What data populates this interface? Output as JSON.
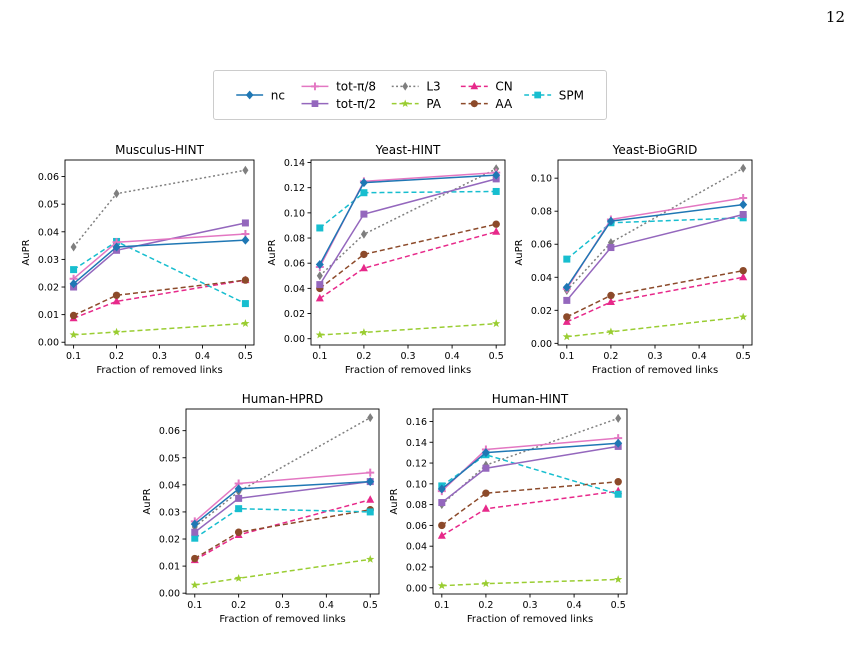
{
  "page": {
    "number": "12"
  },
  "legend": {
    "entries": [
      {
        "key": "nc",
        "label": "nc"
      },
      {
        "key": "tot8",
        "label": "tot-π/8"
      },
      {
        "key": "tot2",
        "label": "tot-π/2"
      },
      {
        "key": "L3",
        "label": "L3"
      },
      {
        "key": "PA",
        "label": "PA"
      },
      {
        "key": "CN",
        "label": "CN"
      },
      {
        "key": "AA",
        "label": "AA"
      },
      {
        "key": "SPM",
        "label": "SPM"
      }
    ]
  },
  "series_styles": {
    "nc": {
      "color": "#1f77b4",
      "dash": "solid",
      "marker": "diamond"
    },
    "tot8": {
      "color": "#e377c2",
      "dash": "solid",
      "marker": "plus"
    },
    "tot2": {
      "color": "#9467bd",
      "dash": "solid",
      "marker": "square"
    },
    "L3": {
      "color": "#7f7f7f",
      "dash": "dotted",
      "marker": "thin_diamond"
    },
    "PA": {
      "color": "#9acd32",
      "dash": "dashed",
      "marker": "star"
    },
    "CN": {
      "color": "#e7298a",
      "dash": "dashed",
      "marker": "triangle"
    },
    "AA": {
      "color": "#8c4a2a",
      "dash": "dashed",
      "marker": "circle"
    },
    "SPM": {
      "color": "#17becf",
      "dash": "dashed",
      "marker": "square"
    }
  },
  "chart_data": [
    {
      "type": "line",
      "title": "Musculus-HINT",
      "xlabel": "Fraction of removed links",
      "ylabel": "AuPR",
      "x": [
        0.1,
        0.2,
        0.5
      ],
      "xlim": [
        0.08,
        0.52
      ],
      "ylim": [
        -0.001,
        0.066
      ],
      "xticks": [
        "0.1",
        "0.2",
        "0.3",
        "0.4",
        "0.5"
      ],
      "yticks": [
        "0.00",
        "0.01",
        "0.02",
        "0.03",
        "0.04",
        "0.05",
        "0.06"
      ],
      "series": [
        {
          "key": "L3",
          "values": [
            0.0345,
            0.0538,
            0.0623
          ]
        },
        {
          "key": "PA",
          "values": [
            0.0027,
            0.0037,
            0.0068
          ]
        },
        {
          "key": "CN",
          "values": [
            0.0087,
            0.0148,
            0.0225
          ]
        },
        {
          "key": "AA",
          "values": [
            0.0097,
            0.017,
            0.0225
          ]
        },
        {
          "key": "SPM",
          "values": [
            0.0263,
            0.0365,
            0.014
          ]
        },
        {
          "key": "tot2",
          "values": [
            0.02,
            0.0333,
            0.0432
          ]
        },
        {
          "key": "tot8",
          "values": [
            0.023,
            0.0362,
            0.0392
          ]
        },
        {
          "key": "nc",
          "values": [
            0.0212,
            0.0345,
            0.037
          ]
        }
      ]
    },
    {
      "type": "line",
      "title": "Yeast-HINT",
      "xlabel": "Fraction of removed links",
      "ylabel": "AuPR",
      "x": [
        0.1,
        0.2,
        0.5
      ],
      "xlim": [
        0.08,
        0.52
      ],
      "ylim": [
        -0.005,
        0.142
      ],
      "xticks": [
        "0.1",
        "0.2",
        "0.3",
        "0.4",
        "0.5"
      ],
      "yticks": [
        "0.00",
        "0.02",
        "0.04",
        "0.06",
        "0.08",
        "0.10",
        "0.12",
        "0.14"
      ],
      "series": [
        {
          "key": "L3",
          "values": [
            0.05,
            0.083,
            0.135
          ]
        },
        {
          "key": "PA",
          "values": [
            0.003,
            0.005,
            0.012
          ]
        },
        {
          "key": "CN",
          "values": [
            0.032,
            0.056,
            0.085
          ]
        },
        {
          "key": "AA",
          "values": [
            0.04,
            0.067,
            0.091
          ]
        },
        {
          "key": "SPM",
          "values": [
            0.088,
            0.116,
            0.117
          ]
        },
        {
          "key": "tot2",
          "values": [
            0.043,
            0.099,
            0.127
          ]
        },
        {
          "key": "tot8",
          "values": [
            0.057,
            0.125,
            0.132
          ]
        },
        {
          "key": "nc",
          "values": [
            0.059,
            0.124,
            0.13
          ]
        }
      ]
    },
    {
      "type": "line",
      "title": "Yeast-BioGRID",
      "xlabel": "Fraction of removed links",
      "ylabel": "AuPR",
      "x": [
        0.1,
        0.2,
        0.5
      ],
      "xlim": [
        0.08,
        0.52
      ],
      "ylim": [
        -0.001,
        0.111
      ],
      "xticks": [
        "0.1",
        "0.2",
        "0.3",
        "0.4",
        "0.5"
      ],
      "yticks": [
        "0.00",
        "0.02",
        "0.04",
        "0.06",
        "0.08",
        "0.10"
      ],
      "series": [
        {
          "key": "L3",
          "values": [
            0.032,
            0.061,
            0.106
          ]
        },
        {
          "key": "PA",
          "values": [
            0.004,
            0.007,
            0.016
          ]
        },
        {
          "key": "CN",
          "values": [
            0.013,
            0.025,
            0.04
          ]
        },
        {
          "key": "AA",
          "values": [
            0.016,
            0.029,
            0.044
          ]
        },
        {
          "key": "SPM",
          "values": [
            0.051,
            0.073,
            0.076
          ]
        },
        {
          "key": "tot2",
          "values": [
            0.026,
            0.058,
            0.078
          ]
        },
        {
          "key": "tot8",
          "values": [
            0.033,
            0.075,
            0.088
          ]
        },
        {
          "key": "nc",
          "values": [
            0.034,
            0.074,
            0.084
          ]
        }
      ]
    },
    {
      "type": "line",
      "title": "Human-HPRD",
      "xlabel": "Fraction of removed links",
      "ylabel": "AuPR",
      "x": [
        0.1,
        0.2,
        0.5
      ],
      "xlim": [
        0.08,
        0.52
      ],
      "ylim": [
        -0.0003,
        0.068
      ],
      "xticks": [
        "0.1",
        "0.2",
        "0.3",
        "0.4",
        "0.5"
      ],
      "yticks": [
        "0.00",
        "0.01",
        "0.02",
        "0.03",
        "0.04",
        "0.05",
        "0.06"
      ],
      "series": [
        {
          "key": "L3",
          "values": [
            0.0245,
            0.0375,
            0.0648
          ]
        },
        {
          "key": "PA",
          "values": [
            0.003,
            0.0055,
            0.0125
          ]
        },
        {
          "key": "CN",
          "values": [
            0.0122,
            0.0215,
            0.0345
          ]
        },
        {
          "key": "AA",
          "values": [
            0.0128,
            0.0225,
            0.0308
          ]
        },
        {
          "key": "SPM",
          "values": [
            0.0203,
            0.0312,
            0.03
          ]
        },
        {
          "key": "tot2",
          "values": [
            0.0225,
            0.035,
            0.0412
          ]
        },
        {
          "key": "tot8",
          "values": [
            0.0265,
            0.0405,
            0.0445
          ]
        },
        {
          "key": "nc",
          "values": [
            0.0255,
            0.0385,
            0.0412
          ]
        }
      ]
    },
    {
      "type": "line",
      "title": "Human-HINT",
      "xlabel": "Fraction of removed links",
      "ylabel": "AuPR",
      "x": [
        0.1,
        0.2,
        0.5
      ],
      "xlim": [
        0.08,
        0.52
      ],
      "ylim": [
        -0.006,
        0.172
      ],
      "xticks": [
        "0.1",
        "0.2",
        "0.3",
        "0.4",
        "0.5"
      ],
      "yticks": [
        "0.00",
        "0.02",
        "0.04",
        "0.06",
        "0.08",
        "0.10",
        "0.12",
        "0.14",
        "0.16"
      ],
      "series": [
        {
          "key": "L3",
          "values": [
            0.08,
            0.118,
            0.163
          ]
        },
        {
          "key": "PA",
          "values": [
            0.002,
            0.004,
            0.008
          ]
        },
        {
          "key": "CN",
          "values": [
            0.05,
            0.076,
            0.093
          ]
        },
        {
          "key": "AA",
          "values": [
            0.06,
            0.091,
            0.102
          ]
        },
        {
          "key": "SPM",
          "values": [
            0.098,
            0.128,
            0.09
          ]
        },
        {
          "key": "tot2",
          "values": [
            0.082,
            0.115,
            0.136
          ]
        },
        {
          "key": "tot8",
          "values": [
            0.093,
            0.133,
            0.144
          ]
        },
        {
          "key": "nc",
          "values": [
            0.095,
            0.13,
            0.139
          ]
        }
      ]
    }
  ]
}
